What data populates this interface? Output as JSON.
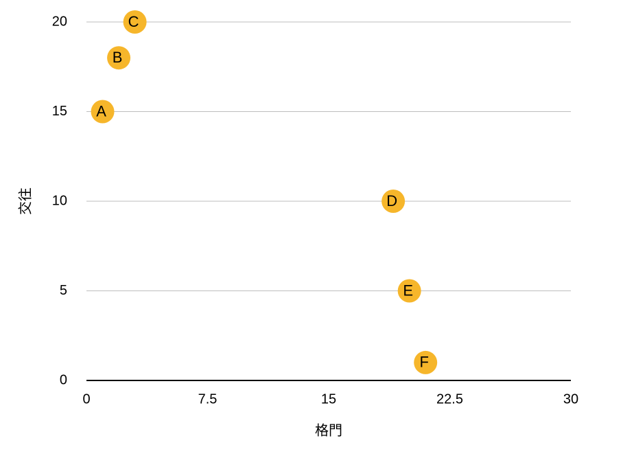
{
  "chart_data": {
    "type": "scatter",
    "x_label": "格門",
    "y_label": "交往",
    "x": [
      1,
      2,
      3,
      19,
      20,
      21
    ],
    "values": [
      15,
      18,
      20,
      10,
      5,
      1
    ],
    "labels": [
      "A",
      "B",
      "C",
      "D",
      "E",
      "F"
    ],
    "color": "#f6b62b",
    "xlim": [
      0,
      30
    ],
    "xticks": [
      0,
      7.5,
      15,
      22.5,
      30
    ],
    "ylim": [
      0,
      20
    ],
    "yticks": [
      0,
      5,
      10,
      15,
      20
    ],
    "grid": true
  }
}
